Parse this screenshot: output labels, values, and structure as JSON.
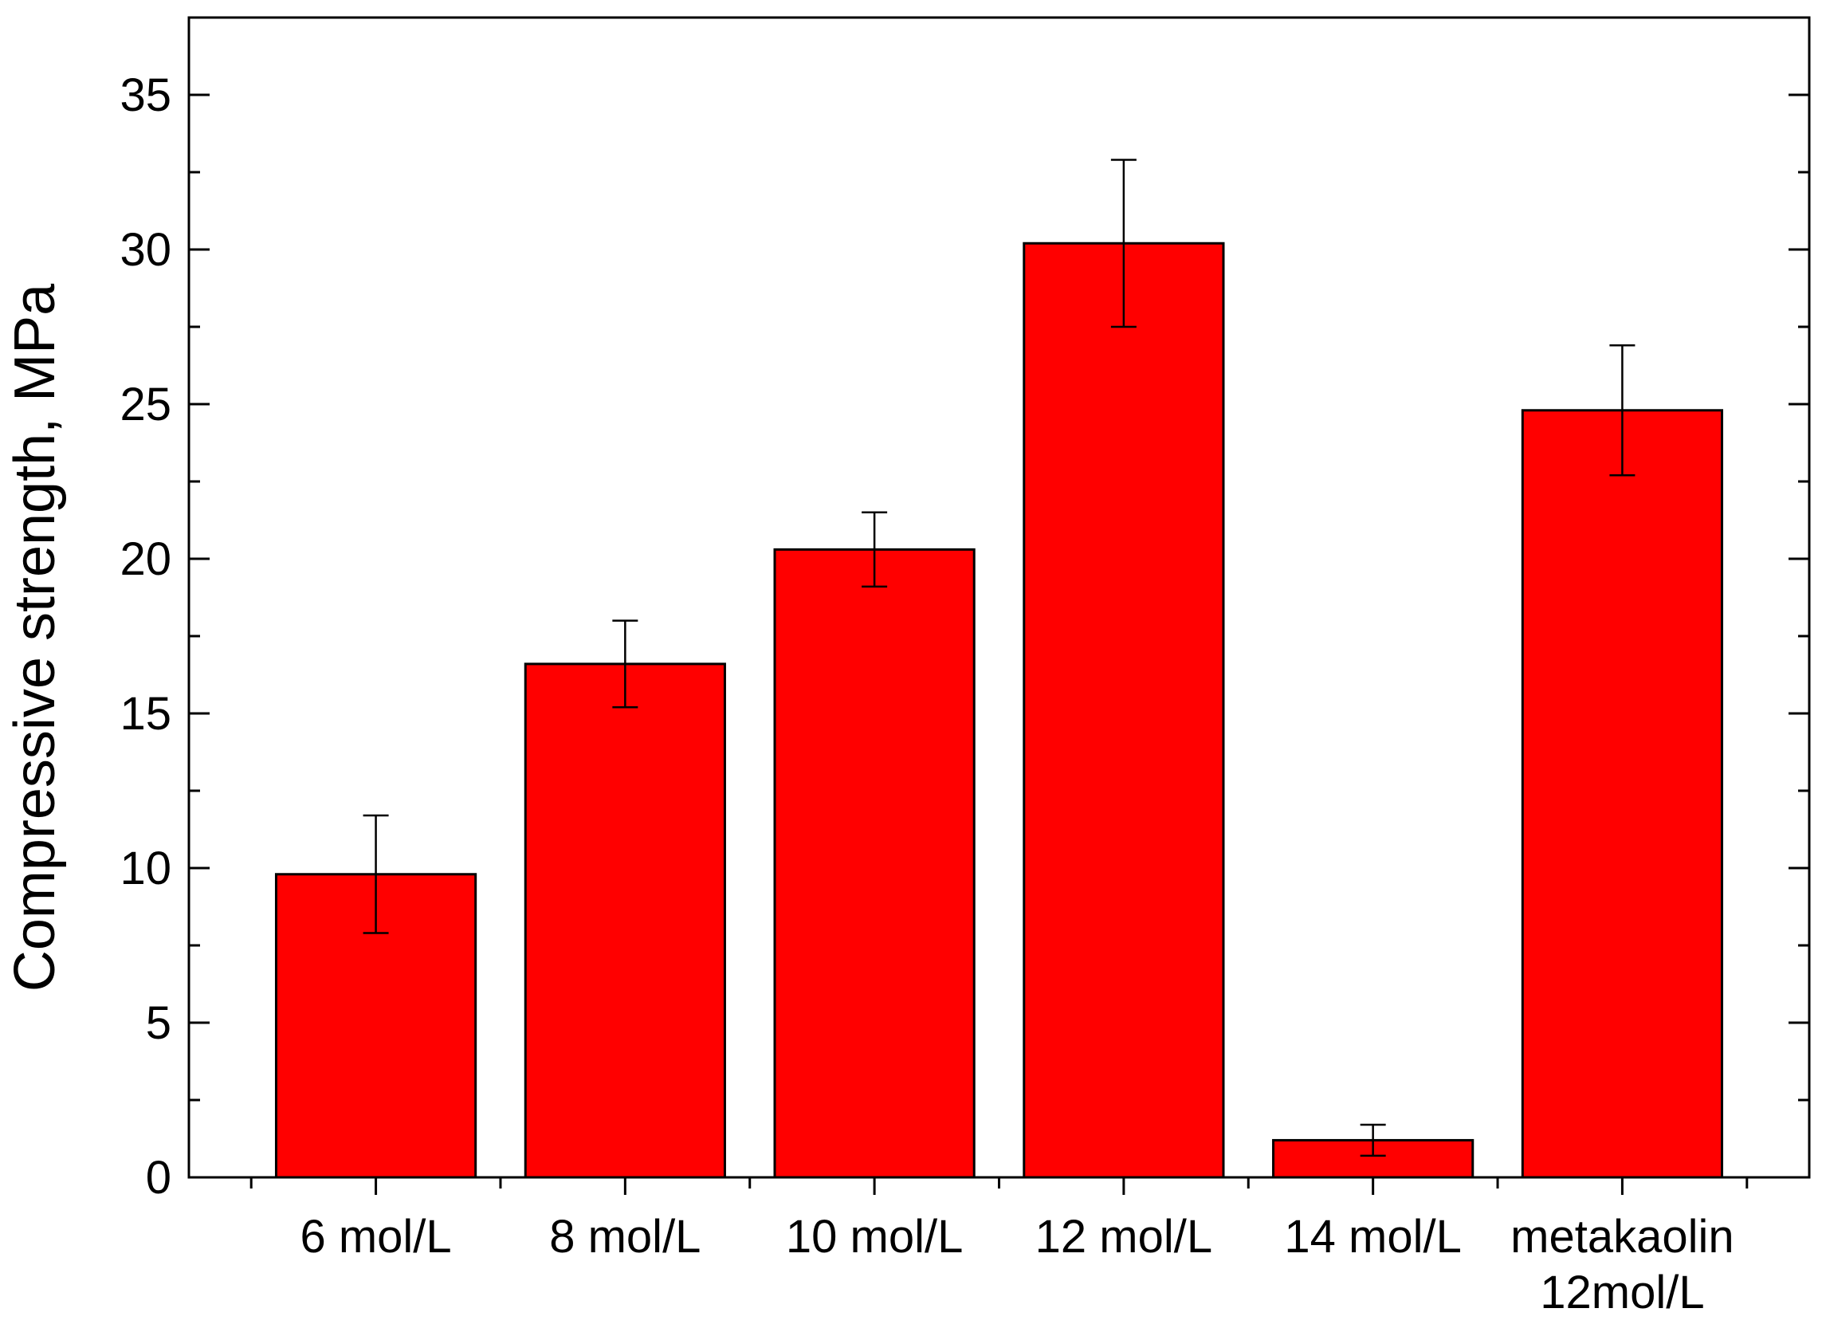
{
  "chart_data": {
    "type": "bar",
    "categories": [
      [
        "6 mol/L"
      ],
      [
        "8 mol/L"
      ],
      [
        "10 mol/L"
      ],
      [
        "12 mol/L"
      ],
      [
        "14 mol/L"
      ],
      [
        "metakaolin",
        "12mol/L"
      ]
    ],
    "values": [
      9.8,
      16.6,
      20.3,
      30.2,
      1.2,
      24.8
    ],
    "errors": [
      1.9,
      1.4,
      1.2,
      2.7,
      0.5,
      2.1
    ],
    "xlabel": "",
    "ylabel": "Compressive strength, MPa",
    "ylim": [
      0,
      37.5
    ],
    "yticks": [
      0,
      5,
      10,
      15,
      20,
      25,
      30,
      35
    ],
    "grid": false,
    "colors": {
      "bar": "#ff0000",
      "outline": "#000000",
      "axis": "#000000"
    }
  }
}
